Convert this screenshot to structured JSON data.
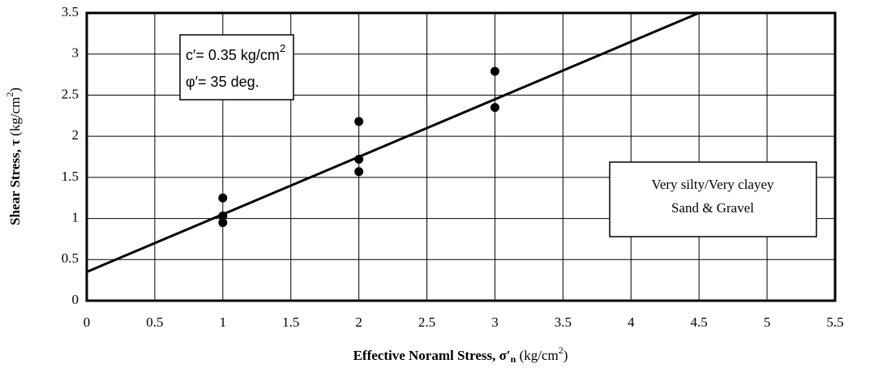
{
  "chart_data": {
    "type": "scatter",
    "xlabel": [
      "Effective Noraml Stress, σ′",
      "n",
      " (kg/cm",
      "2",
      ")"
    ],
    "ylabel": [
      "Shear Stress,  τ",
      " (kg/cm",
      "2",
      ")"
    ],
    "x": [
      1,
      1,
      1,
      2,
      2,
      2,
      3,
      3
    ],
    "values": [
      1.25,
      1.03,
      0.95,
      2.18,
      1.72,
      1.57,
      2.79,
      2.35
    ],
    "color": "#000000",
    "fit_line": {
      "x": [
        0,
        4.5
      ],
      "values": [
        0.35,
        3.5
      ],
      "color": "#000000"
    },
    "annotations": [
      [
        "c′= 0.35  kg/cm",
        "2"
      ],
      [
        "φ′= 35 deg."
      ],
      [
        "Very silty/Very clayey"
      ],
      [
        "Sand & Gravel"
      ]
    ],
    "xlim": [
      0,
      5.5
    ],
    "xticks": [
      0,
      0.5,
      1,
      1.5,
      2,
      2.5,
      3,
      3.5,
      4,
      4.5,
      5,
      5.5
    ],
    "ylim": [
      0,
      3.5
    ],
    "yticks": [
      0,
      0.5,
      1,
      1.5,
      2,
      2.5,
      3,
      3.5
    ],
    "grid": true
  }
}
